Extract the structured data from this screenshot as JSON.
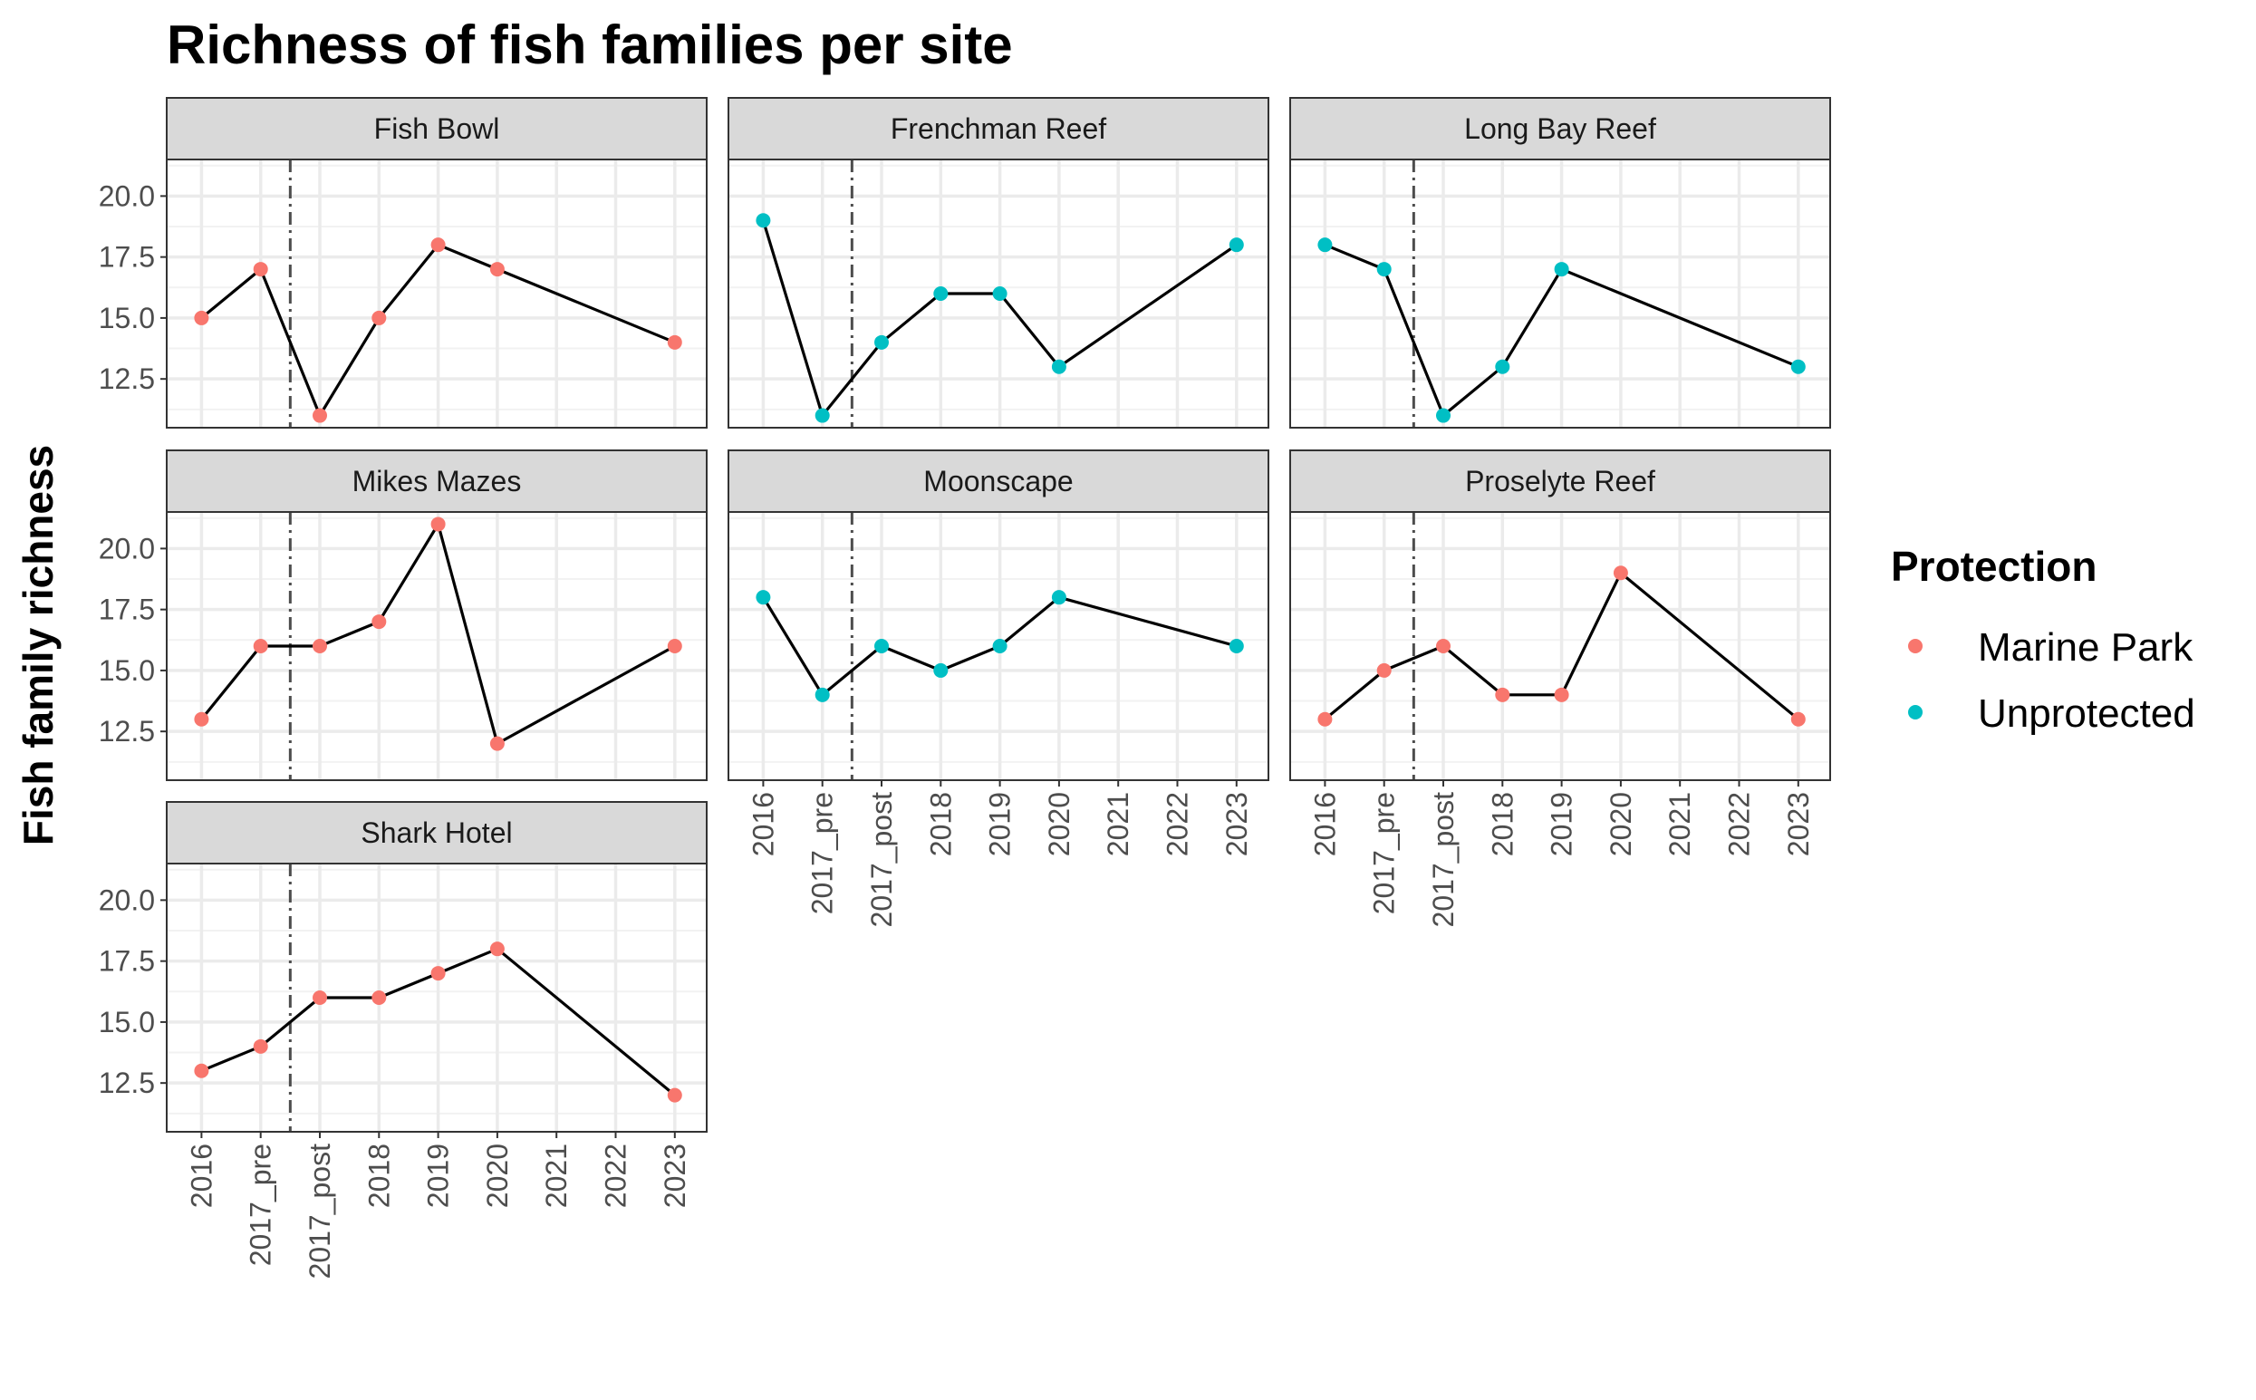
{
  "chart_data": {
    "type": "line",
    "title": "Richness of fish families per site",
    "xlabel": "",
    "ylabel": "Fish family richness",
    "categories": [
      "2016",
      "2017_pre",
      "2017_post",
      "2018",
      "2019",
      "2020",
      "2021",
      "2022",
      "2023"
    ],
    "ylim": [
      10.5,
      21.5
    ],
    "yticks": [
      12.5,
      15.0,
      17.5,
      20.0
    ],
    "ytick_labels": [
      "12.5",
      "15.0",
      "17.5",
      "20.0"
    ],
    "vline_at": "between 2017_pre and 2017_post",
    "grid": true,
    "legend": {
      "title": "Protection",
      "placement": "right",
      "items": [
        {
          "label": "Marine Park",
          "color": "#F8766D"
        },
        {
          "label": "Unprotected",
          "color": "#00BFC4"
        }
      ]
    },
    "facets": [
      {
        "name": "Fish Bowl",
        "protection": "Marine Park",
        "points": [
          [
            "2016",
            15
          ],
          [
            "2017_pre",
            17
          ],
          [
            "2017_post",
            11
          ],
          [
            "2018",
            15
          ],
          [
            "2019",
            18
          ],
          [
            "2020",
            17
          ],
          [
            "2023",
            14
          ]
        ]
      },
      {
        "name": "Frenchman Reef",
        "protection": "Unprotected",
        "points": [
          [
            "2016",
            19
          ],
          [
            "2017_pre",
            11
          ],
          [
            "2017_post",
            14
          ],
          [
            "2018",
            16
          ],
          [
            "2019",
            16
          ],
          [
            "2020",
            13
          ],
          [
            "2023",
            18
          ]
        ]
      },
      {
        "name": "Long Bay Reef",
        "protection": "Unprotected",
        "points": [
          [
            "2016",
            18
          ],
          [
            "2017_pre",
            17
          ],
          [
            "2017_post",
            11
          ],
          [
            "2018",
            13
          ],
          [
            "2019",
            17
          ],
          [
            "2023",
            13
          ]
        ]
      },
      {
        "name": "Mikes Mazes",
        "protection": "Marine Park",
        "points": [
          [
            "2016",
            13
          ],
          [
            "2017_pre",
            16
          ],
          [
            "2017_post",
            16
          ],
          [
            "2018",
            17
          ],
          [
            "2019",
            21
          ],
          [
            "2020",
            12
          ],
          [
            "2023",
            16
          ]
        ]
      },
      {
        "name": "Moonscape",
        "protection": "Unprotected",
        "points": [
          [
            "2016",
            18
          ],
          [
            "2017_pre",
            14
          ],
          [
            "2017_post",
            16
          ],
          [
            "2018",
            15
          ],
          [
            "2019",
            16
          ],
          [
            "2020",
            18
          ],
          [
            "2023",
            16
          ]
        ]
      },
      {
        "name": "Proselyte Reef",
        "protection": "Marine Park",
        "points": [
          [
            "2016",
            13
          ],
          [
            "2017_pre",
            15
          ],
          [
            "2017_post",
            16
          ],
          [
            "2018",
            14
          ],
          [
            "2019",
            14
          ],
          [
            "2020",
            19
          ],
          [
            "2023",
            13
          ]
        ]
      },
      {
        "name": "Shark Hotel",
        "protection": "Marine Park",
        "points": [
          [
            "2016",
            13
          ],
          [
            "2017_pre",
            14
          ],
          [
            "2017_post",
            16
          ],
          [
            "2018",
            16
          ],
          [
            "2019",
            17
          ],
          [
            "2020",
            18
          ],
          [
            "2023",
            12
          ]
        ]
      }
    ]
  }
}
